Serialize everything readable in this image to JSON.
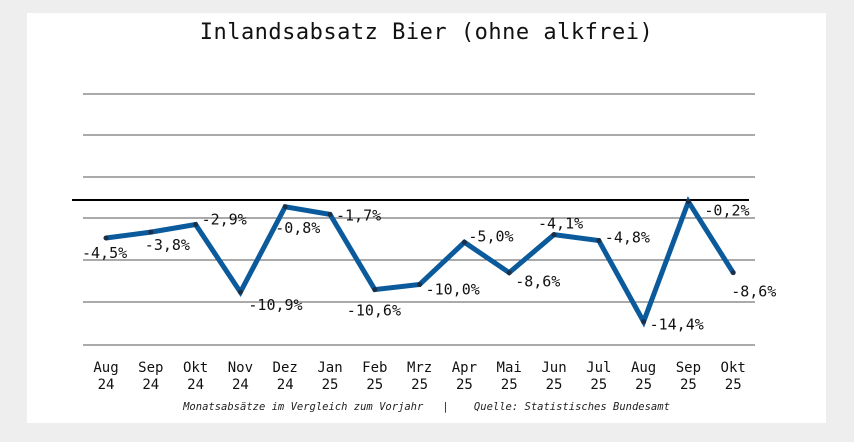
{
  "chart_data": {
    "type": "line",
    "title": "Inlandsabsatz Bier (ohne alkfrei)",
    "categories": [
      [
        "Aug",
        "24"
      ],
      [
        "Sep",
        "24"
      ],
      [
        "Okt",
        "24"
      ],
      [
        "Nov",
        "24"
      ],
      [
        "Dez",
        "24"
      ],
      [
        "Jan",
        "25"
      ],
      [
        "Feb",
        "25"
      ],
      [
        "Mrz",
        "25"
      ],
      [
        "Apr",
        "25"
      ],
      [
        "Mai",
        "25"
      ],
      [
        "Jun",
        "25"
      ],
      [
        "Jul",
        "25"
      ],
      [
        "Aug",
        "25"
      ],
      [
        "Sep",
        "25"
      ],
      [
        "Okt",
        "25"
      ]
    ],
    "values": [
      -4.5,
      -3.8,
      -2.9,
      -10.9,
      -0.8,
      -1.7,
      -10.6,
      -10.0,
      -5.0,
      -8.6,
      -4.1,
      -4.8,
      -14.4,
      -0.2,
      -8.6
    ],
    "labels": [
      "-4,5%",
      "-3,8%",
      "-2,9%",
      "-10,9%",
      "-0,8%",
      "-1,7%",
      "-10,6%",
      "-10,0%",
      "-5,0%",
      "-8,6%",
      "-4,1%",
      "-4,8%",
      "-14,4%",
      "-0,2%",
      "-8,6%"
    ],
    "ylim": [
      -17,
      12.5
    ],
    "grid": true,
    "line_color": "#0a5a9c",
    "xlabel": "",
    "ylabel": ""
  },
  "footer": {
    "note": "Monatsabsätze im Vergleich zum Vorjahr",
    "separator": "|",
    "source": "Quelle: Statistisches Bundesamt"
  }
}
